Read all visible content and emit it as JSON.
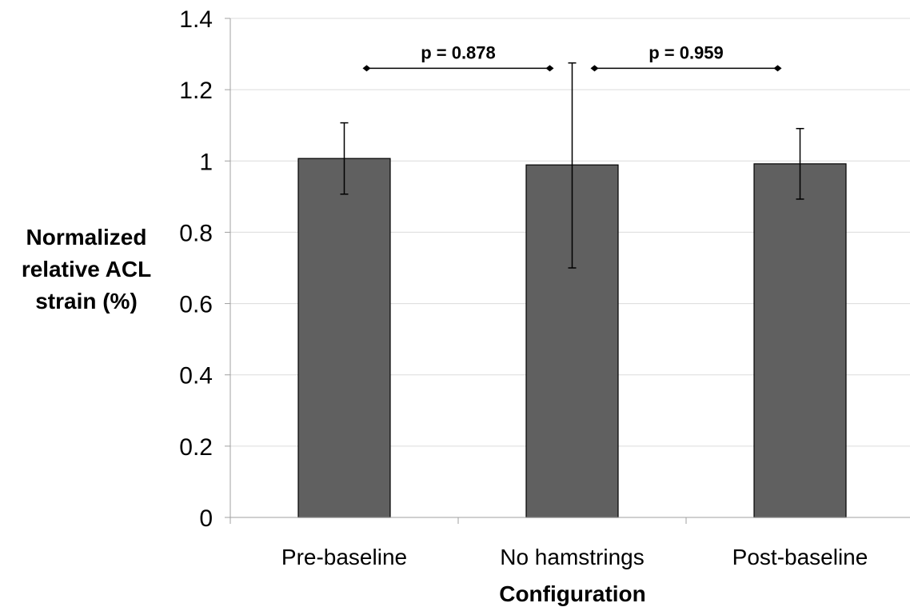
{
  "chart_data": {
    "type": "bar",
    "categories": [
      "Pre-baseline",
      "No hamstrings",
      "Post-baseline"
    ],
    "values": [
      1.007,
      0.989,
      0.992
    ],
    "error_bars": [
      {
        "low": 0.907,
        "high": 1.107
      },
      {
        "low": 0.7,
        "high": 1.275
      },
      {
        "low": 0.893,
        "high": 1.091
      }
    ],
    "ylim": [
      0,
      1.4
    ],
    "yticks": [
      0,
      0.2,
      0.4,
      0.6,
      0.8,
      1,
      1.2,
      1.4
    ],
    "ytick_labels": [
      "0",
      "0.2",
      "0.4",
      "0.6",
      "0.8",
      "1",
      "1.2",
      "1.4"
    ],
    "xlabel": "Configuration",
    "ylabel_lines": [
      "Normalized",
      "relative ACL",
      "strain (%)"
    ],
    "grid": true,
    "bar_color": "#606060",
    "annotations": [
      {
        "text": "p = 0.878",
        "from_category": 0,
        "to_category": 1,
        "y": 1.26
      },
      {
        "text": "p = 0.959",
        "from_category": 1,
        "to_category": 2,
        "y": 1.26
      }
    ]
  }
}
